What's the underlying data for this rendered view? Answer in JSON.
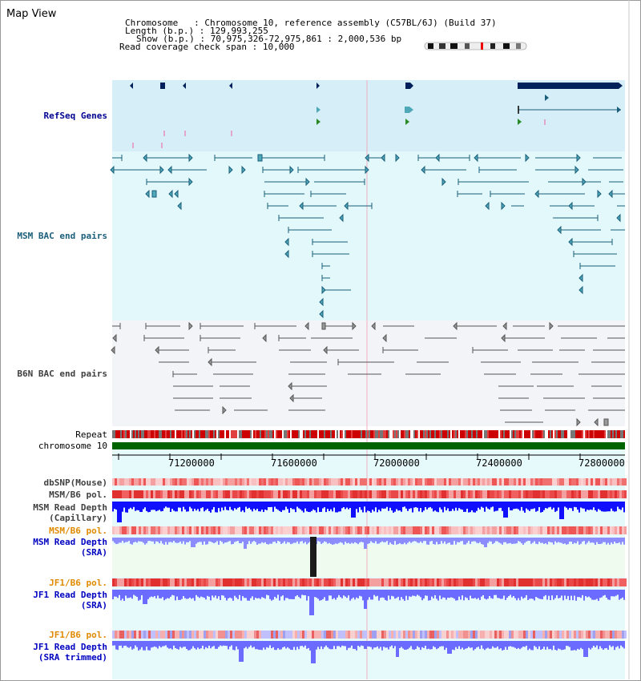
{
  "page": {
    "title": "Map View"
  },
  "info": {
    "chromosome_key": "Chromosome   ",
    "chromosome_val": ": Chromosome 10, reference assembly (C57BL/6J) (Build 37)",
    "length_key": "Length (b.p.)",
    "length_val": ": 129,993,255",
    "show_key": "Show (b.p.)",
    "show_val": ": 70,975,326-72,975,861 : 2,000,536 bp",
    "coverage_key": "Read coverage check span",
    "coverage_val": ": 10,000"
  },
  "tracks": {
    "refseq": "RefSeq Genes",
    "msm_bac": "MSM BAC end pairs",
    "b6n_bac": "B6N BAC end pairs",
    "repeat": "Repeat",
    "chromosome": "chromosome 10",
    "dbsnp": "dbSNP(Mouse)",
    "msm_b6_pol_1": "MSM/B6 pol.",
    "msm_read_depth_cap_1": "MSM Read Depth",
    "msm_read_depth_cap_2": "(Capillary)",
    "msm_b6_pol_2": "MSM/B6 pol.",
    "msm_read_depth_sra_1": "MSM Read Depth",
    "msm_read_depth_sra_2": "(SRA)",
    "jf1_b6_pol_1": "JF1/B6 pol.",
    "jf1_read_depth_sra_1": "JF1 Read Depth",
    "jf1_read_depth_sra_2": "(SRA)",
    "jf1_b6_pol_2": "JF1/B6 pol.",
    "jf1_read_depth_trim_1": "JF1 Read Depth",
    "jf1_read_depth_trim_2": "(SRA trimmed)"
  },
  "axis": {
    "ticks": [
      "71200000",
      "71600000",
      "72000000",
      "72400000",
      "72800000"
    ]
  },
  "colors": {
    "refseq_bg": "#d6eef8",
    "msm_bg": "#e2f8fa",
    "b6n_bg": "#f3f4f8",
    "navy": "#00205b",
    "teal": "#1b5e7a",
    "chrom_green": "#006400",
    "depth_blue": "#0000ff",
    "depth_light": "#7b7bff"
  }
}
